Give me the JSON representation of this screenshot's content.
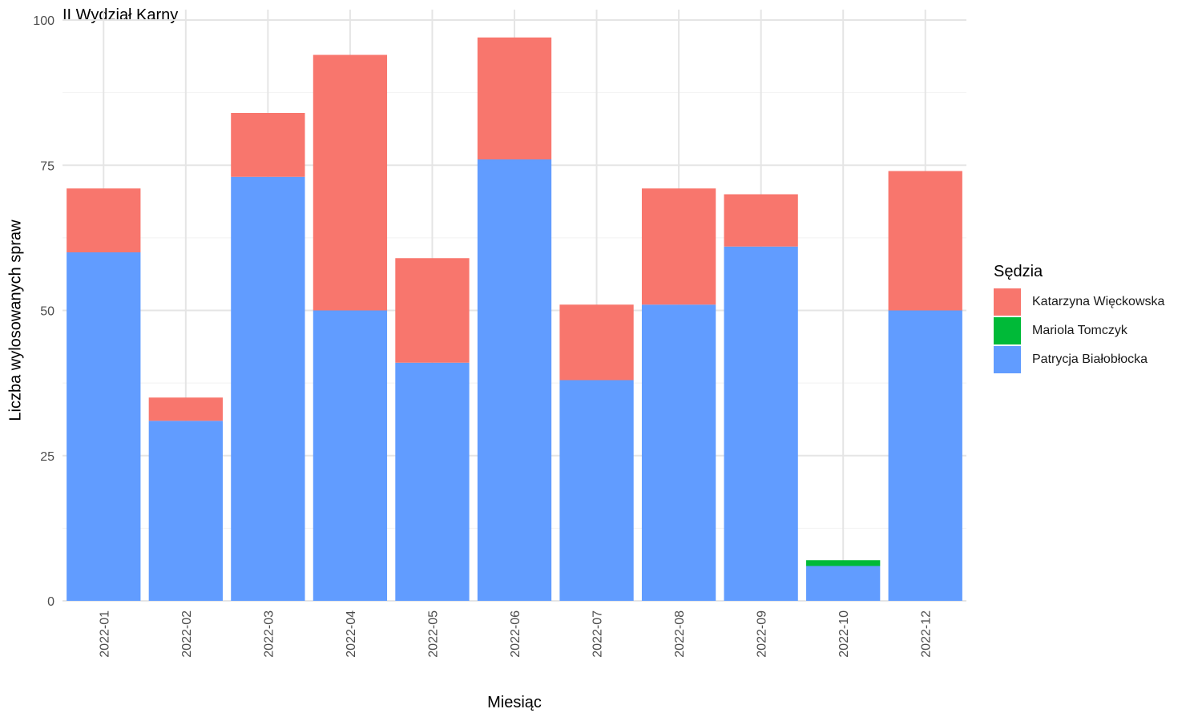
{
  "chart_data": {
    "type": "bar",
    "stacked": true,
    "title": "II Wydział Karny",
    "xlabel": "Miesiąc",
    "ylabel": "Liczba wylosowanych spraw",
    "ylim": [
      0,
      100
    ],
    "yticks": [
      0,
      25,
      50,
      75,
      100
    ],
    "grid": true,
    "legend_title": "Sędzia",
    "legend_position": "right",
    "categories": [
      "2022-01",
      "2022-02",
      "2022-03",
      "2022-04",
      "2022-05",
      "2022-06",
      "2022-07",
      "2022-08",
      "2022-09",
      "2022-10",
      "2022-12"
    ],
    "series": [
      {
        "name": "Patrycja Białobłocka",
        "color": "#619CFF",
        "values": [
          60,
          31,
          73,
          50,
          41,
          76,
          38,
          51,
          61,
          6,
          50
        ]
      },
      {
        "name": "Mariola Tomczyk",
        "color": "#00BA38",
        "values": [
          0,
          0,
          0,
          0,
          0,
          0,
          0,
          0,
          0,
          1,
          0
        ]
      },
      {
        "name": "Katarzyna Więckowska",
        "color": "#F8766D",
        "values": [
          11,
          4,
          11,
          44,
          18,
          21,
          13,
          20,
          9,
          0,
          24
        ]
      }
    ],
    "legend_order": [
      "Katarzyna Więckowska",
      "Mariola Tomczyk",
      "Patrycja Białobłocka"
    ]
  }
}
